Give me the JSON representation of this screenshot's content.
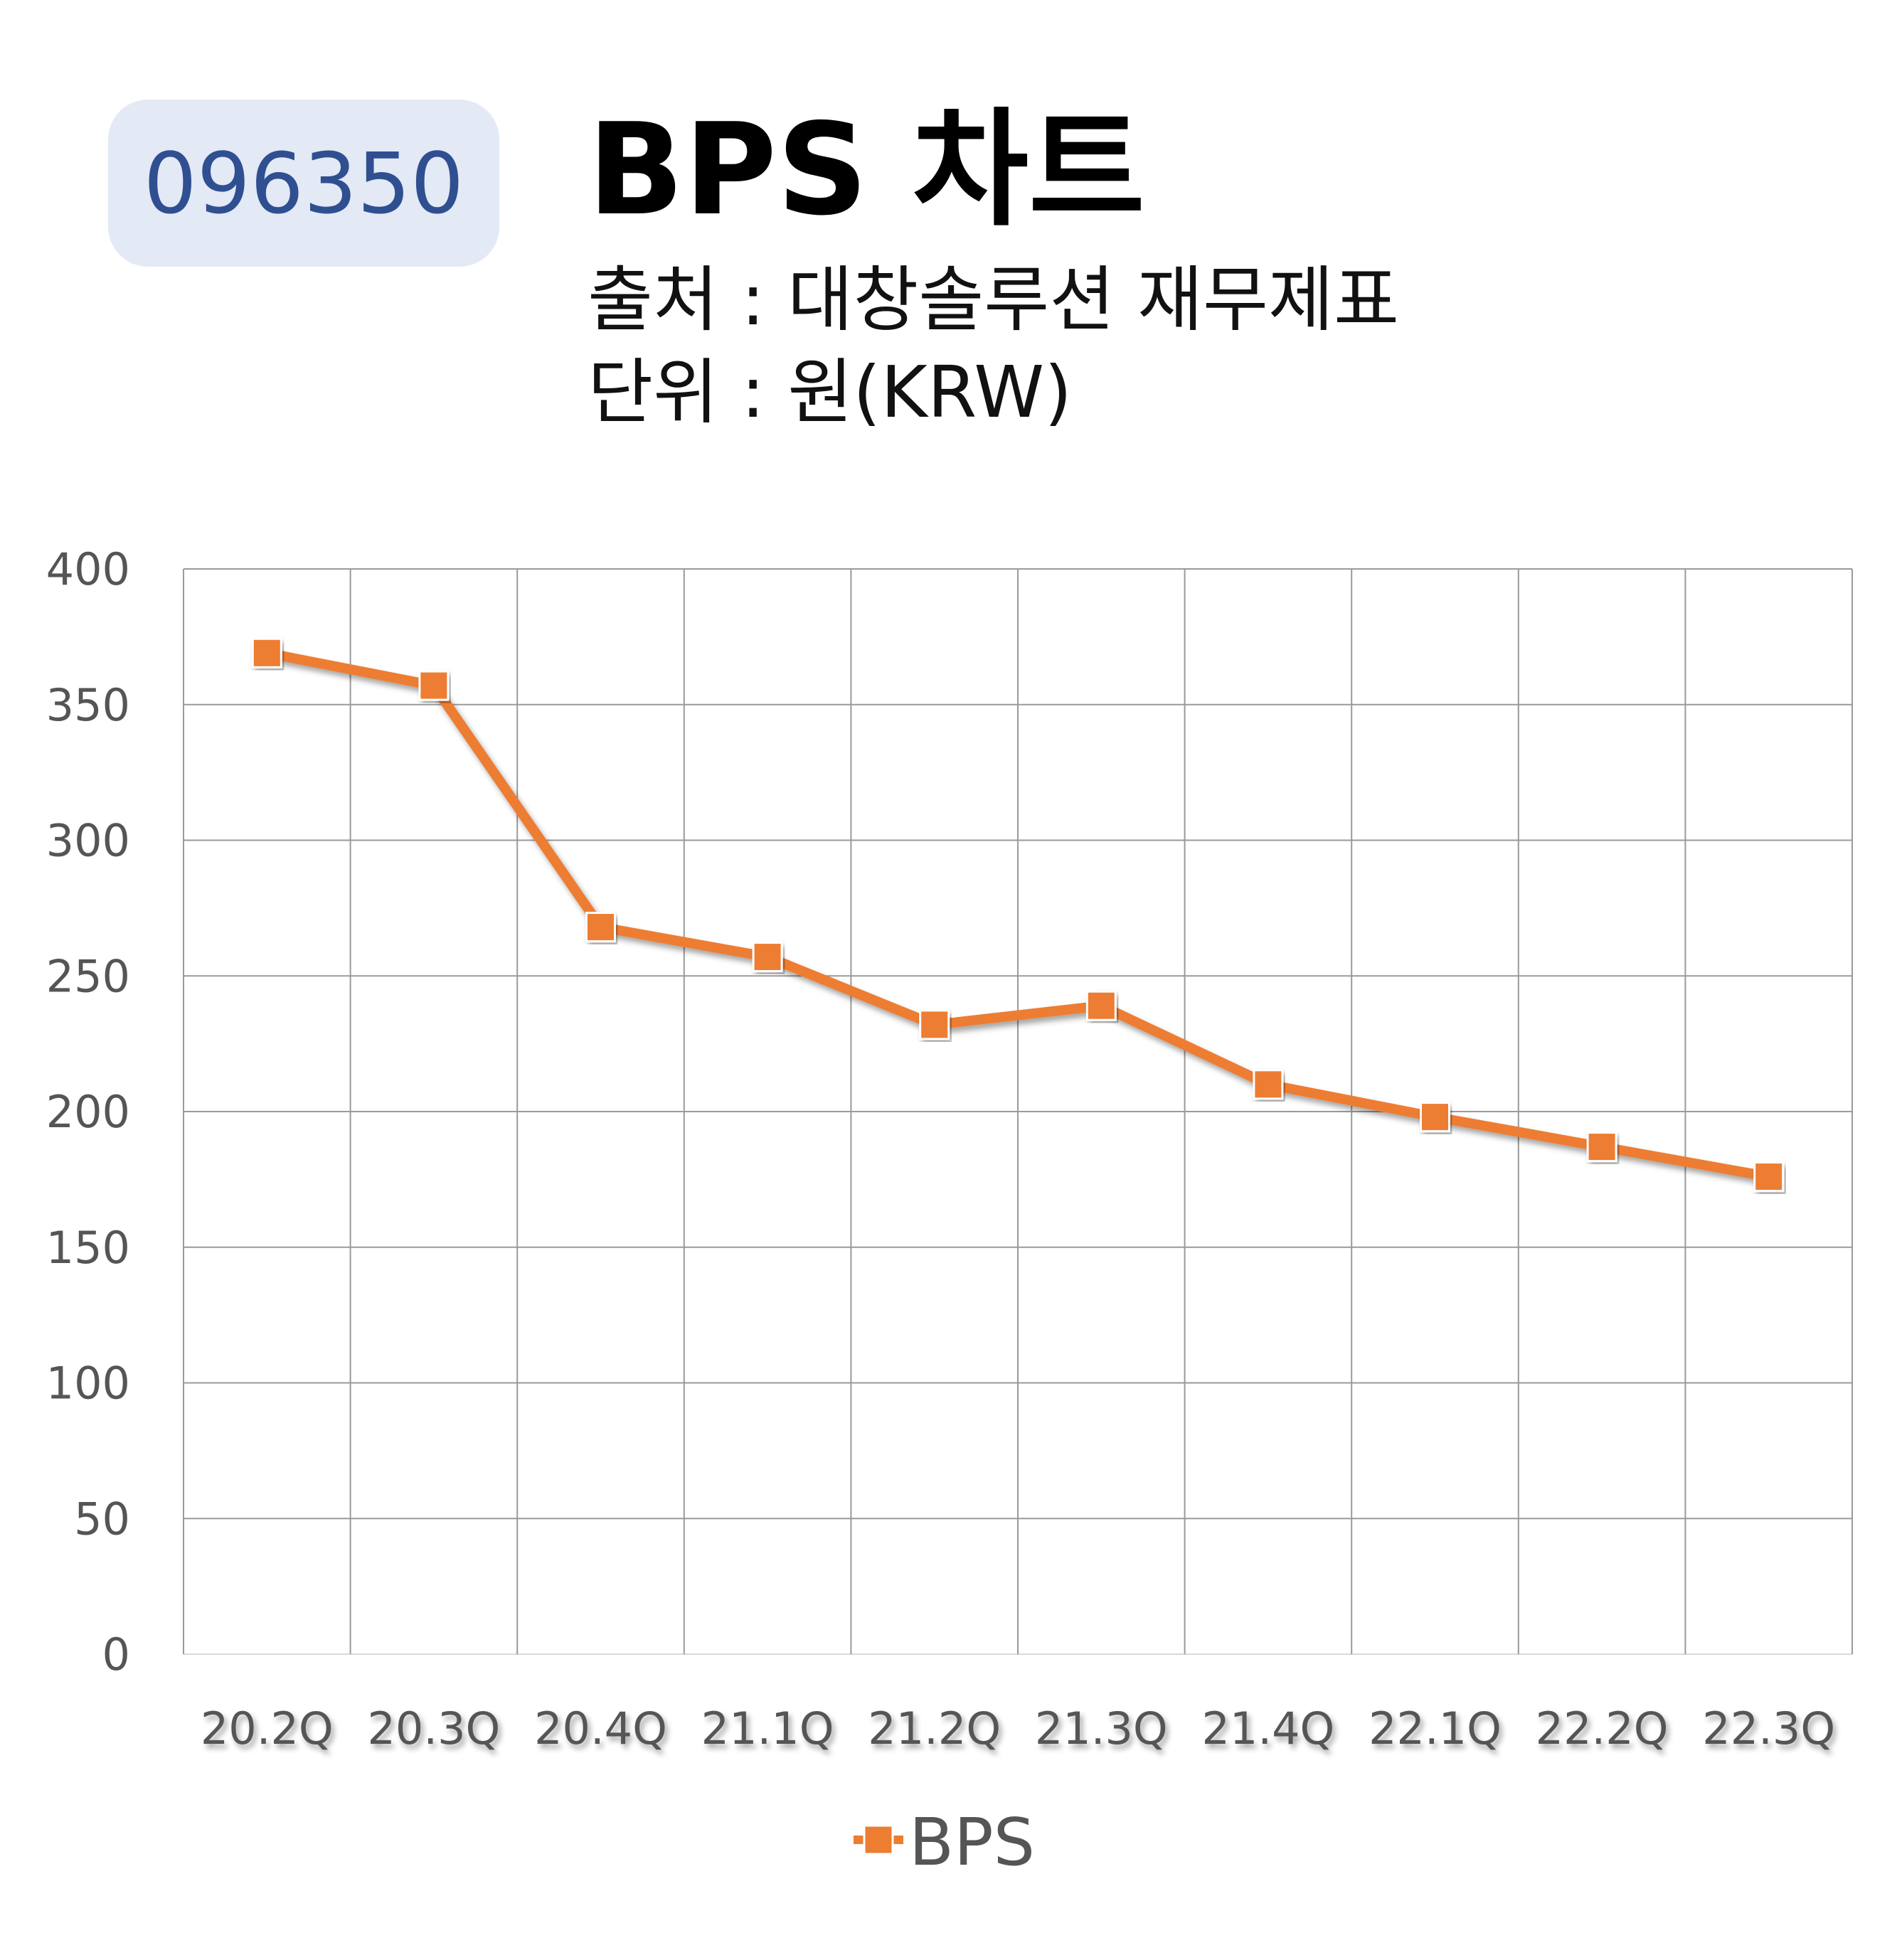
{
  "header": {
    "code": "096350",
    "title": "BPS 차트",
    "source": "출처 : 대창솔루션 재무제표",
    "unit": "단위 : 원(KRW)"
  },
  "chart_data": {
    "type": "line",
    "categories": [
      "20.2Q",
      "20.3Q",
      "20.4Q",
      "21.1Q",
      "21.2Q",
      "21.3Q",
      "21.4Q",
      "22.1Q",
      "22.2Q",
      "22.3Q"
    ],
    "series": [
      {
        "name": "BPS",
        "values": [
          369,
          357,
          268,
          257,
          232,
          239,
          210,
          198,
          187,
          176
        ],
        "color": "#ed7d31"
      }
    ],
    "y_ticks": [
      0,
      50,
      100,
      150,
      200,
      250,
      300,
      350,
      400
    ],
    "ylim": [
      0,
      400
    ],
    "grid": true,
    "legend": "bottom-center",
    "marker": "square"
  }
}
